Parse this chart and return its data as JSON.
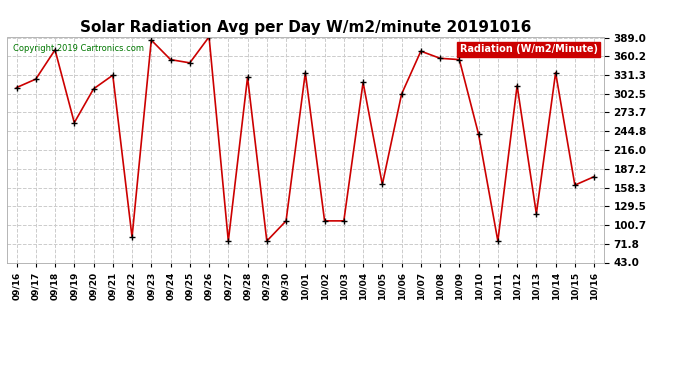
{
  "title": "Solar Radiation Avg per Day W/m2/minute 20191016",
  "copyright": "Copyright 2019 Cartronics.com",
  "legend_label": "Radiation (W/m2/Minute)",
  "dates": [
    "09/16",
    "09/17",
    "09/18",
    "09/19",
    "09/20",
    "09/21",
    "09/22",
    "09/23",
    "09/24",
    "09/25",
    "09/26",
    "09/27",
    "09/28",
    "09/29",
    "09/30",
    "10/01",
    "10/02",
    "10/03",
    "10/04",
    "10/05",
    "10/06",
    "10/07",
    "10/08",
    "10/09",
    "10/10",
    "10/11",
    "10/12",
    "10/13",
    "10/14",
    "10/15",
    "10/16"
  ],
  "values": [
    312,
    325,
    370,
    258,
    310,
    331,
    82,
    385,
    355,
    350,
    390,
    76,
    328,
    76,
    107,
    335,
    107,
    107,
    320,
    163,
    302,
    368,
    357,
    355,
    240,
    76,
    315,
    118,
    335,
    162,
    175
  ],
  "y_ticks": [
    43.0,
    71.8,
    100.7,
    129.5,
    158.3,
    187.2,
    216.0,
    244.8,
    273.7,
    302.5,
    331.3,
    360.2,
    389.0
  ],
  "y_min": 43.0,
  "y_max": 389.0,
  "line_color": "#cc0000",
  "marker_color": "#000000",
  "bg_color": "#ffffff",
  "grid_color": "#cccccc",
  "title_fontsize": 11,
  "legend_bg": "#cc0000",
  "legend_text_color": "#ffffff",
  "copyright_color": "#007700"
}
